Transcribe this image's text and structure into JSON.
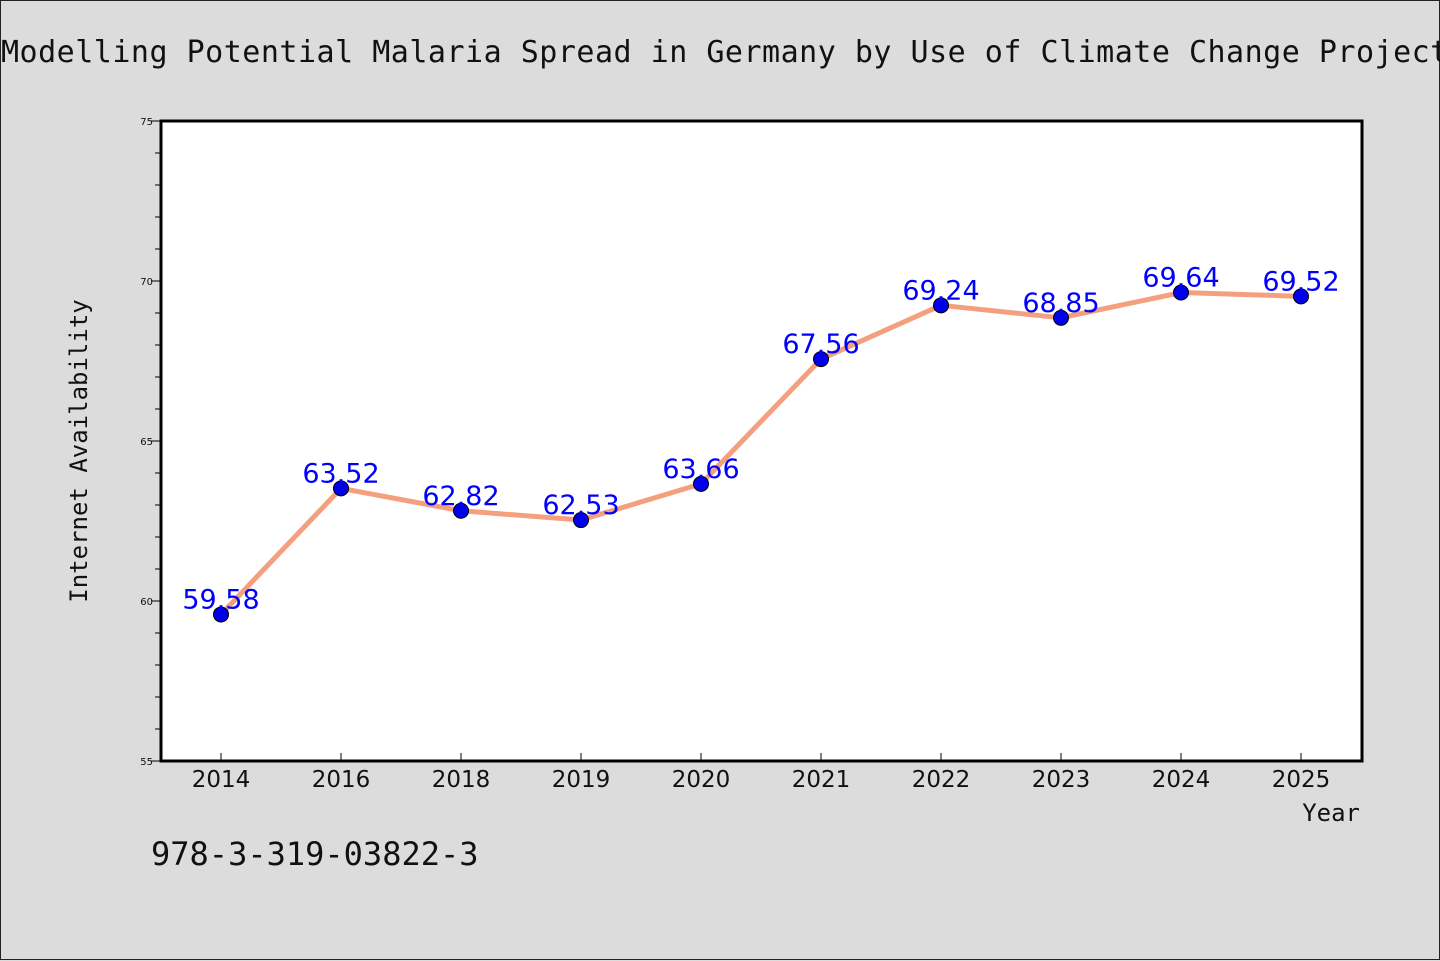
{
  "title": "Modelling Potential Malaria Spread in Germany by Use of Climate Change Projections",
  "footer": "978-3-319-03822-3",
  "colors": {
    "background": "#dcdcdc",
    "plot_background": "#ffffff",
    "line": "#f4a07e",
    "marker": "#0000ee",
    "label": "#0000ff"
  },
  "chart_data": {
    "type": "line",
    "categories": [
      "2014",
      "2016",
      "2018",
      "2019",
      "2020",
      "2021",
      "2022",
      "2023",
      "2024",
      "2025"
    ],
    "series": [
      {
        "values": [
          59.58,
          63.52,
          62.82,
          62.53,
          63.66,
          67.56,
          69.24,
          68.85,
          69.64,
          69.52
        ]
      }
    ],
    "data_labels": [
      "59.58",
      "63.52",
      "62.82",
      "62.53",
      "63.66",
      "67.56",
      "69.24",
      "68.85",
      "69.64",
      "69.52"
    ],
    "xlabel": "Year",
    "ylabel": "Internet Availability",
    "ylim": [
      55,
      75
    ],
    "yticks": [
      55,
      60,
      65,
      70,
      75
    ],
    "grid": false,
    "legend": "none"
  }
}
